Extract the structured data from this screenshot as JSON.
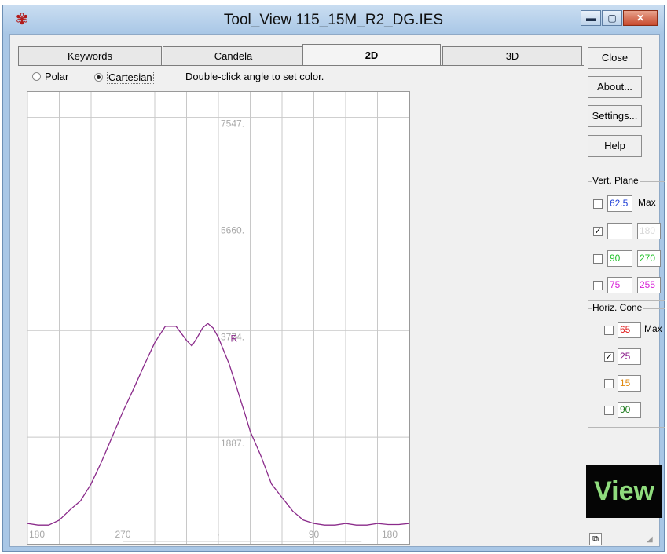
{
  "window": {
    "title": "Tool_View 115_15M_R2_DG.IES"
  },
  "tabs": [
    {
      "label": "Keywords",
      "active": false
    },
    {
      "label": "Candela",
      "active": false
    },
    {
      "label": "2D",
      "active": true
    },
    {
      "label": "3D",
      "active": false
    }
  ],
  "view_mode": {
    "polar_label": "Polar",
    "cartesian_label": "Cartesian",
    "selected": "Cartesian"
  },
  "hint": "Double-click angle to set color.",
  "buttons": {
    "close": "Close",
    "about": "About...",
    "settings": "Settings...",
    "help": "Help"
  },
  "vert_plane": {
    "title": "Vert. Plane",
    "max_label": "Max",
    "rows": [
      {
        "checked": false,
        "a": "62.5",
        "a_color": "#1f3fd6",
        "b": "",
        "b_is_max_label": true
      },
      {
        "checked": true,
        "a": "",
        "a_color": "#000000",
        "b": "180",
        "b_color": "#d9d9d9"
      },
      {
        "checked": false,
        "a": "90",
        "a_color": "#22c22a",
        "b": "270",
        "b_color": "#22c22a"
      },
      {
        "checked": false,
        "a": "75",
        "a_color": "#d81fd8",
        "b": "255",
        "b_color": "#d81fd8"
      }
    ]
  },
  "horiz_cone": {
    "title": "Horiz. Cone",
    "max_label": "Max",
    "rows": [
      {
        "checked": false,
        "value": "65",
        "color": "#e02020"
      },
      {
        "checked": true,
        "value": "25",
        "color": "#8a1a8a"
      },
      {
        "checked": false,
        "value": "15",
        "color": "#e08a10"
      },
      {
        "checked": false,
        "value": "90",
        "color": "#1c7a1c"
      }
    ]
  },
  "badge": {
    "text": "View"
  },
  "chart_data": {
    "type": "line",
    "y_tick_labels": [
      "7547.",
      "5660.",
      "3774.",
      "1887."
    ],
    "x_tick_labels": [
      "180",
      "270",
      "·",
      "90",
      "180"
    ],
    "ylim": [
      0,
      8000
    ],
    "grid": true,
    "marker_label": "R",
    "series": [
      {
        "color": "#8a2a8a",
        "x": [
          -180,
          -170,
          -160,
          -150,
          -140,
          -130,
          -120,
          -110,
          -100,
          -90,
          -80,
          -70,
          -60,
          -50,
          -40,
          -30,
          -25,
          -20,
          -15,
          -10,
          -5,
          0,
          5,
          10,
          15,
          20,
          25,
          30,
          40,
          50,
          60,
          70,
          80,
          90,
          100,
          110,
          120,
          130,
          140,
          150,
          160,
          170,
          180
        ],
        "y": [
          360,
          330,
          330,
          420,
          600,
          760,
          1060,
          1460,
          1900,
          2340,
          2740,
          3160,
          3560,
          3850,
          3850,
          3600,
          3500,
          3650,
          3820,
          3900,
          3820,
          3650,
          3420,
          3190,
          2900,
          2600,
          2300,
          1990,
          1560,
          1060,
          820,
          580,
          420,
          360,
          330,
          330,
          360,
          330,
          330,
          360,
          340,
          340,
          360
        ]
      }
    ]
  }
}
